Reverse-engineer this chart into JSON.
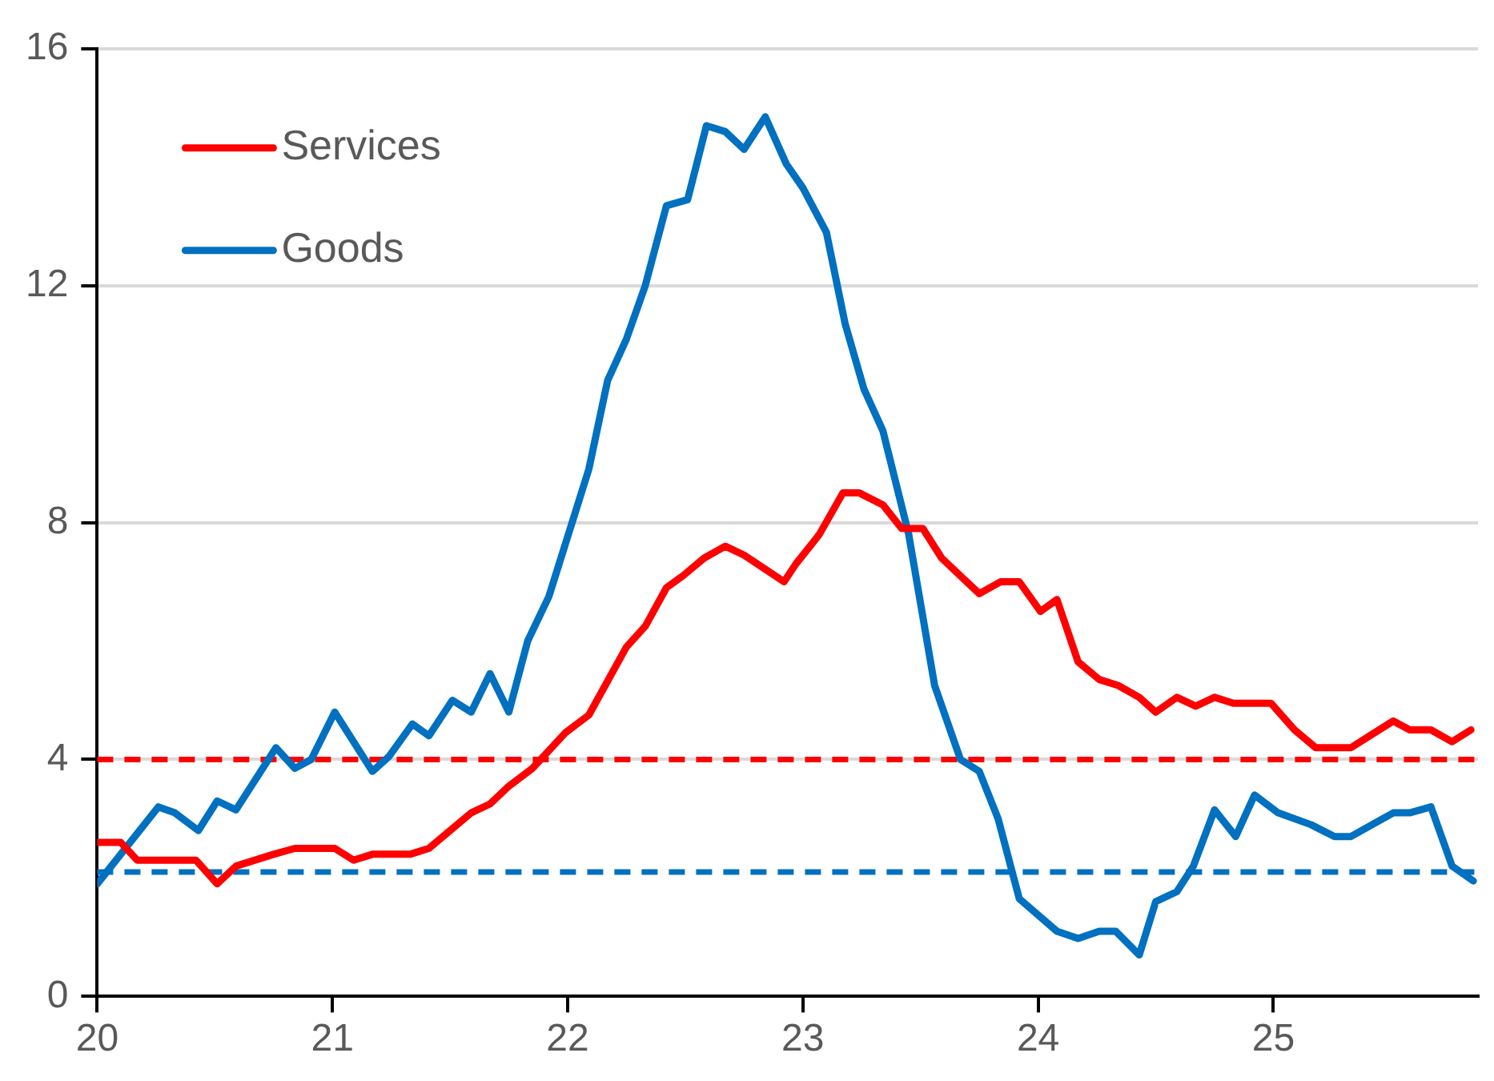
{
  "chart_data": {
    "type": "line",
    "xlim": [
      20,
      25.87
    ],
    "xticks": [
      20,
      21,
      22,
      23,
      24,
      25
    ],
    "ylim": [
      0,
      16
    ],
    "yticks": [
      0,
      4,
      8,
      12,
      16
    ],
    "grid": "y",
    "legend": "top left",
    "line_style": "solid",
    "marker": "none",
    "series": [
      {
        "name": "Services",
        "color": "#ff0000",
        "x": [
          20.0,
          20.1,
          20.17,
          20.42,
          20.51,
          20.59,
          20.75,
          20.84,
          21.01,
          21.09,
          21.17,
          21.33,
          21.41,
          21.59,
          21.67,
          21.75,
          21.85,
          21.99,
          22.09,
          22.25,
          22.33,
          22.42,
          22.49,
          22.58,
          22.67,
          22.75,
          22.92,
          22.97,
          23.07,
          23.17,
          23.24,
          23.34,
          23.42,
          23.51,
          23.59,
          23.67,
          23.75,
          23.84,
          23.92,
          24.01,
          24.08,
          24.17,
          24.26,
          24.34,
          24.43,
          24.5,
          24.59,
          24.67,
          24.75,
          24.83,
          24.99,
          25.09,
          25.18,
          25.33,
          25.41,
          25.51,
          25.58,
          25.67,
          25.76,
          25.84
        ],
        "values": [
          2.6,
          2.6,
          2.3,
          2.3,
          1.9,
          2.2,
          2.4,
          2.5,
          2.5,
          2.3,
          2.4,
          2.4,
          2.5,
          3.1,
          3.25,
          3.55,
          3.85,
          4.45,
          4.75,
          5.9,
          6.25,
          6.9,
          7.1,
          7.4,
          7.6,
          7.45,
          7.0,
          7.3,
          7.8,
          8.5,
          8.5,
          8.3,
          7.9,
          7.9,
          7.4,
          7.1,
          6.8,
          7.0,
          7.0,
          6.5,
          6.7,
          5.65,
          5.35,
          5.25,
          5.05,
          4.8,
          5.05,
          4.9,
          5.05,
          4.95,
          4.95,
          4.5,
          4.2,
          4.2,
          4.4,
          4.65,
          4.5,
          4.5,
          4.3,
          4.5
        ]
      },
      {
        "name": "Goods",
        "color": "#0070c0",
        "x": [
          20.0,
          20.26,
          20.33,
          20.43,
          20.51,
          20.59,
          20.76,
          20.84,
          20.91,
          21.01,
          21.17,
          21.24,
          21.34,
          21.41,
          21.51,
          21.59,
          21.67,
          21.75,
          21.83,
          21.92,
          22.09,
          22.17,
          22.25,
          22.33,
          22.42,
          22.51,
          22.59,
          22.67,
          22.75,
          22.84,
          22.93,
          23.0,
          23.1,
          23.18,
          23.26,
          23.34,
          23.45,
          23.56,
          23.67,
          23.75,
          23.83,
          23.92,
          24.08,
          24.17,
          24.26,
          24.33,
          24.43,
          24.5,
          24.59,
          24.66,
          24.75,
          24.84,
          24.92,
          25.02,
          25.16,
          25.26,
          25.33,
          25.51,
          25.58,
          25.67,
          25.76,
          25.85
        ],
        "values": [
          1.9,
          3.2,
          3.1,
          2.8,
          3.3,
          3.15,
          4.2,
          3.85,
          4.0,
          4.8,
          3.8,
          4.05,
          4.6,
          4.4,
          5.0,
          4.8,
          5.45,
          4.8,
          6.0,
          6.75,
          8.9,
          10.4,
          11.1,
          12.0,
          13.35,
          13.45,
          14.7,
          14.6,
          14.3,
          14.85,
          14.05,
          13.65,
          12.9,
          11.35,
          10.25,
          9.55,
          7.8,
          5.25,
          4.0,
          3.8,
          3.0,
          1.65,
          1.1,
          0.98,
          1.1,
          1.1,
          0.7,
          1.6,
          1.77,
          2.2,
          3.15,
          2.7,
          3.4,
          3.1,
          2.9,
          2.7,
          2.7,
          3.1,
          3.1,
          3.2,
          2.2,
          1.95
        ]
      }
    ],
    "ref_lines": [
      {
        "axis": "y",
        "value": 4,
        "color": "#ff0000",
        "line_style": "dashed"
      },
      {
        "axis": "y",
        "value": 2.1,
        "color": "#0070c0",
        "line_style": "dashed"
      }
    ]
  }
}
